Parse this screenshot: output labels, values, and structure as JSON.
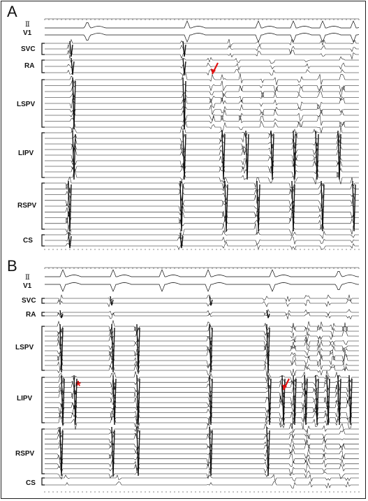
{
  "figure": {
    "panels": [
      {
        "id": "A",
        "letter": "A",
        "labels": [
          "Ⅱ",
          "V1",
          "SVC",
          "RA",
          "LSPV",
          "LIPV",
          "RSPV",
          "CS"
        ],
        "annotations": [
          "arrow"
        ]
      },
      {
        "id": "B",
        "letter": "B",
        "labels": [
          "Ⅱ",
          "V1",
          "SVC",
          "RA",
          "LSPV",
          "LIPV",
          "RSPV",
          "CS"
        ],
        "annotations": [
          "arrow",
          "*"
        ]
      }
    ],
    "colors": {
      "trace": "#111111",
      "annotation": "#e11111",
      "background": "#ffffff"
    }
  }
}
